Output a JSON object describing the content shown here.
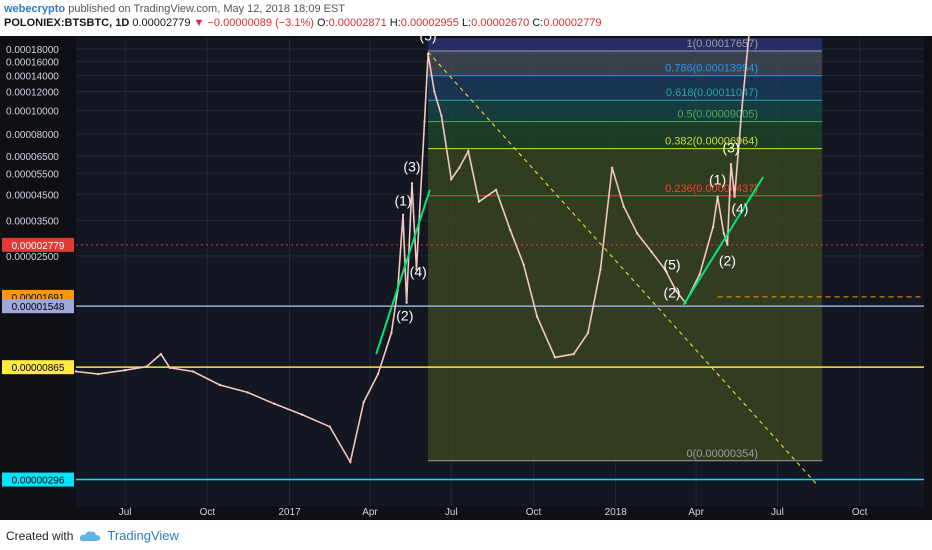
{
  "header": {
    "author": "webecrypto",
    "published_text": "published on TradingView.com, May 12, 2018 18:09 EST",
    "symbol": "POLONIEX:BTSBTC, 1D",
    "last": "0.00002779",
    "change": "−0.00000089 (−3.1%)",
    "o_label": "O:",
    "o_value": "0.00002871",
    "h_label": "H:",
    "h_value": "0.00002955",
    "l_label": "L:",
    "l_value": "0.00002670",
    "c_label": "C:",
    "c_value": "0.00002779"
  },
  "footer": {
    "created_with": "Created with",
    "brand": "TradingView"
  },
  "chart_data": {
    "type": "line",
    "title": "",
    "series_name": "",
    "y_scale": "log",
    "y_ticks": [
      "0.00018000",
      "0.00016000",
      "0.00014000",
      "0.00012000",
      "0.00010000",
      "0.00008000",
      "0.00006500",
      "0.00005500",
      "0.00004500",
      "0.00003500",
      "0.00002500"
    ],
    "y_tick_values": [
      0.00018,
      0.00016,
      0.00014,
      0.00012,
      0.0001,
      8e-05,
      6.5e-05,
      5.5e-05,
      4.5e-05,
      3.5e-05,
      2.5e-05
    ],
    "x_ticks": [
      "Jul",
      "Oct",
      "2017",
      "Apr",
      "Jul",
      "Oct",
      "2018",
      "Apr",
      "Jul",
      "Oct"
    ],
    "x_tick_dates": [
      "2016-07-01",
      "2016-10-01",
      "2017-01-01",
      "2017-04-01",
      "2017-07-01",
      "2017-10-01",
      "2018-01-01",
      "2018-04-01",
      "2018-07-01",
      "2018-10-01"
    ],
    "x_range": [
      "2016-05-07",
      "2018-12-12"
    ],
    "y_range": [
      2.3e-06,
      0.0002
    ],
    "price_tags": [
      {
        "value": "0.00002779",
        "price": 2.779e-05,
        "color": "#e53935"
      },
      {
        "value": "0.00001691",
        "price": 1.691e-05,
        "color": "#ff9800"
      },
      {
        "value": "0.00001548",
        "price": 1.548e-05,
        "color": "#9fa8da"
      },
      {
        "value": "0.00000865",
        "price": 8.65e-06,
        "color": "#ffeb3b"
      },
      {
        "value": "0.00000296",
        "price": 2.96e-06,
        "color": "#00e5ff"
      }
    ],
    "fib_levels": [
      {
        "label": "1(0.00017657)",
        "level": 1,
        "price": 0.00017657,
        "color": "#9e9e9e"
      },
      {
        "label": "0.786(0.00013954)",
        "level": 0.786,
        "price": 0.00013954,
        "color": "#2196f3"
      },
      {
        "label": "0.618(0.00011047)",
        "level": 0.618,
        "price": 0.00011047,
        "color": "#26a69a"
      },
      {
        "label": "0.5(0.00009005)",
        "level": 0.5,
        "price": 9.005e-05,
        "color": "#4caf50"
      },
      {
        "label": "0.382(0.00006964)",
        "level": 0.382,
        "price": 6.964e-05,
        "color": "#cddc39"
      },
      {
        "label": "0.236(0.00004437)",
        "level": 0.236,
        "price": 4.437e-05,
        "color": "#f44336"
      },
      {
        "label": "0(0.00000354)",
        "level": 0,
        "price": 3.54e-06,
        "color": "#9e9e9e"
      }
    ],
    "wave_labels": [
      {
        "text": "(5)",
        "date": "2017-06-05",
        "price": 0.000195
      },
      {
        "text": "(3)",
        "date": "2017-05-18",
        "price": 5.6e-05
      },
      {
        "text": "(1)",
        "date": "2017-05-08",
        "price": 4.05e-05
      },
      {
        "text": "(4)",
        "date": "2017-05-25",
        "price": 2.05e-05
      },
      {
        "text": "(2)",
        "date": "2017-05-10",
        "price": 1.35e-05
      },
      {
        "text": "(1)",
        "date": "2018-04-25",
        "price": 4.95e-05
      },
      {
        "text": "(3)",
        "date": "2018-05-10",
        "price": 6.7e-05
      },
      {
        "text": "(4)",
        "date": "2018-05-20",
        "price": 3.75e-05
      },
      {
        "text": "(2)",
        "date": "2018-05-06",
        "price": 2.28e-05
      },
      {
        "text": "(5)",
        "date": "2018-03-05",
        "price": 2.2e-05
      },
      {
        "text": "(2)",
        "date": "2018-03-05",
        "price": 1.68e-05
      }
    ],
    "price_path": [
      [
        "2016-05-07",
        8.3e-06
      ],
      [
        "2016-06-01",
        8.1e-06
      ],
      [
        "2016-07-01",
        8.4e-06
      ],
      [
        "2016-07-25",
        8.7e-06
      ],
      [
        "2016-08-10",
        9.8e-06
      ],
      [
        "2016-08-20",
        8.6e-06
      ],
      [
        "2016-09-15",
        8.3e-06
      ],
      [
        "2016-10-15",
        7.3e-06
      ],
      [
        "2016-11-15",
        6.8e-06
      ],
      [
        "2016-12-15",
        6.1e-06
      ],
      [
        "2017-01-15",
        5.5e-06
      ],
      [
        "2017-02-15",
        4.9e-06
      ],
      [
        "2017-03-10",
        3.5e-06
      ],
      [
        "2017-03-25",
        6.2e-06
      ],
      [
        "2017-04-10",
        8.1e-06
      ],
      [
        "2017-04-25",
        1.2e-05
      ],
      [
        "2017-05-02",
        1.8e-05
      ],
      [
        "2017-05-08",
        3.7e-05
      ],
      [
        "2017-05-12",
        1.6e-05
      ],
      [
        "2017-05-18",
        5e-05
      ],
      [
        "2017-05-23",
        2.2e-05
      ],
      [
        "2017-06-01",
        9e-05
      ],
      [
        "2017-06-05",
        0.000172
      ],
      [
        "2017-06-12",
        0.00012
      ],
      [
        "2017-06-20",
        9.5e-05
      ],
      [
        "2017-07-01",
        5.2e-05
      ],
      [
        "2017-07-10",
        5.8e-05
      ],
      [
        "2017-07-20",
        6.8e-05
      ],
      [
        "2017-08-01",
        4.2e-05
      ],
      [
        "2017-08-20",
        4.7e-05
      ],
      [
        "2017-09-05",
        3.2e-05
      ],
      [
        "2017-09-20",
        2.3e-05
      ],
      [
        "2017-10-05",
        1.4e-05
      ],
      [
        "2017-10-25",
        9.5e-06
      ],
      [
        "2017-11-15",
        9.8e-06
      ],
      [
        "2017-12-01",
        1.2e-05
      ],
      [
        "2017-12-15",
        2.2e-05
      ],
      [
        "2017-12-28",
        5.8e-05
      ],
      [
        "2018-01-10",
        4e-05
      ],
      [
        "2018-01-25",
        3.1e-05
      ],
      [
        "2018-02-10",
        2.6e-05
      ],
      [
        "2018-02-25",
        2.2e-05
      ],
      [
        "2018-03-10",
        1.78e-05
      ],
      [
        "2018-03-20",
        1.6e-05
      ],
      [
        "2018-04-05",
        2.1e-05
      ],
      [
        "2018-04-20",
        3.3e-05
      ],
      [
        "2018-04-25",
        4.4e-05
      ],
      [
        "2018-05-02",
        3.1e-05
      ],
      [
        "2018-05-06",
        2.78e-05
      ],
      [
        "2018-05-10",
        6e-05
      ],
      [
        "2018-05-14",
        4.4e-05
      ],
      [
        "2018-05-22",
        0.0001
      ],
      [
        "2018-05-30",
        0.000205
      ]
    ],
    "trend_lines": [
      {
        "from": [
          "2017-04-08",
          9.8e-06
        ],
        "to": [
          "2017-06-07",
          4.7e-05
        ],
        "color": "#00e676"
      },
      {
        "from": [
          "2018-03-18",
          1.57e-05
        ],
        "to": [
          "2018-06-15",
          5.31e-05
        ],
        "color": "#00e676"
      }
    ],
    "diagonal": {
      "from": [
        "2017-06-05",
        0.000175
      ],
      "to": [
        "2018-08-15",
        2.8e-06
      ],
      "color": "#ffeb3b"
    }
  }
}
